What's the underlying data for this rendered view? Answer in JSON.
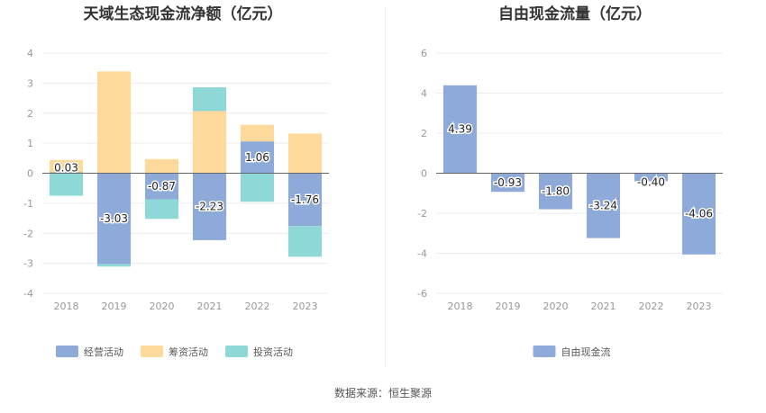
{
  "source_text": "数据来源：恒生聚源",
  "colors": {
    "operating": "#8eaad9",
    "financing": "#fdd99b",
    "investing": "#8ed8d8",
    "fcf": "#8eaad9"
  },
  "chart_data": [
    {
      "type": "bar",
      "stacked": true,
      "title": "天域生态现金流净额（亿元）",
      "categories": [
        "2018",
        "2019",
        "2020",
        "2021",
        "2022",
        "2023"
      ],
      "series": [
        {
          "name": "经营活动",
          "key": "operating",
          "values": [
            0.03,
            -3.03,
            -0.87,
            -2.23,
            1.06,
            -1.76
          ]
        },
        {
          "name": "筹资活动",
          "key": "financing",
          "values": [
            0.41,
            3.39,
            0.47,
            2.07,
            0.55,
            1.32
          ]
        },
        {
          "name": "投资活动",
          "key": "investing",
          "values": [
            -0.75,
            -0.08,
            -0.65,
            0.79,
            -0.95,
            -1.02
          ]
        }
      ],
      "data_labels": [
        "0.03",
        "-3.03",
        "-0.87",
        "-2.23",
        "1.06",
        "-1.76"
      ],
      "ylim": [
        -4,
        4
      ],
      "yticks": [
        -4,
        -3,
        -2,
        -1,
        0,
        1,
        2,
        3,
        4
      ],
      "grid": true,
      "legend": "bottom"
    },
    {
      "type": "bar",
      "title": "自由现金流量（亿元）",
      "categories": [
        "2018",
        "2019",
        "2020",
        "2021",
        "2022",
        "2023"
      ],
      "series": [
        {
          "name": "自由现金流",
          "key": "fcf",
          "values": [
            4.39,
            -0.93,
            -1.8,
            -3.24,
            -0.4,
            -4.06
          ]
        }
      ],
      "data_labels": [
        "4.39",
        "-0.93",
        "-1.80",
        "-3.24",
        "-0.40",
        "-4.06"
      ],
      "ylim": [
        -6,
        6
      ],
      "yticks": [
        -6,
        -4,
        -2,
        0,
        2,
        4,
        6
      ],
      "grid": true,
      "legend": "bottom"
    }
  ]
}
